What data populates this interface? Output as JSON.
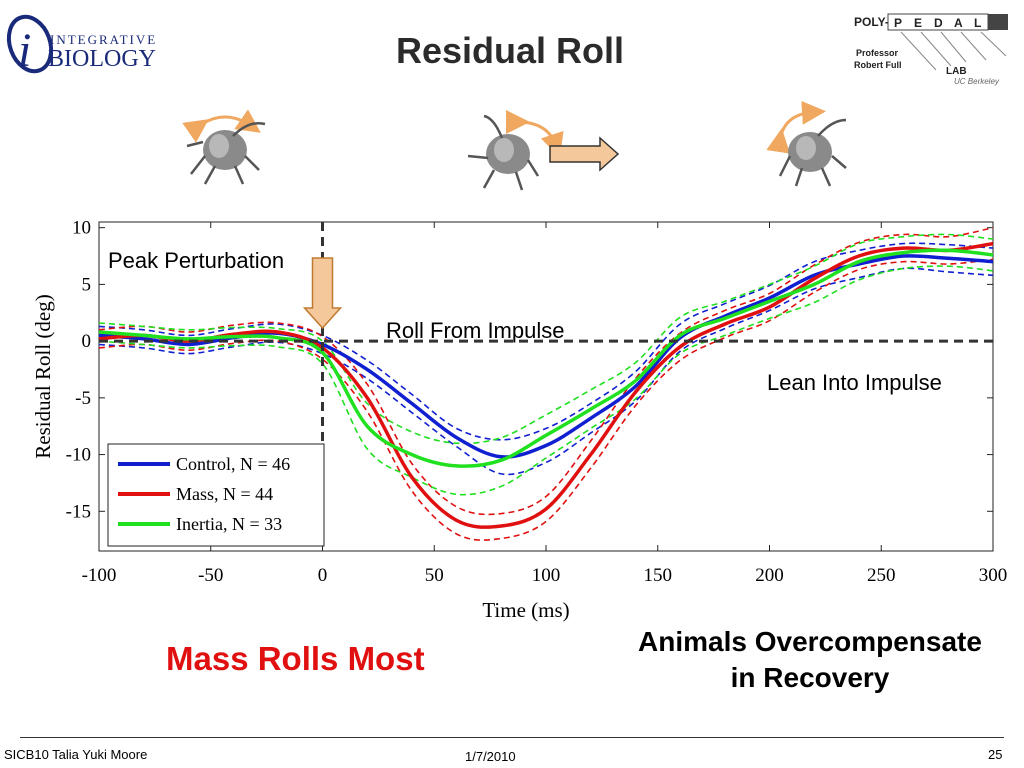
{
  "title": "Residual Roll",
  "logo_left": {
    "top": "INTEGRATIVE",
    "bottom": "BIOLOGY",
    "letter": "i"
  },
  "logo_right": {
    "poly": "POLY-",
    "letters": [
      "P",
      "E",
      "D",
      "A",
      "L"
    ],
    "professor": "Professor",
    "name": "Robert Full",
    "lab": "LAB",
    "affil": "UC Berkeley"
  },
  "annotations": {
    "peak": "Peak Perturbation",
    "roll_from": "Roll From Impulse",
    "lean_into": "Lean Into Impulse"
  },
  "captions": {
    "mass_rolls": "Mass Rolls Most",
    "overcomp_1": "Animals Overcompensate",
    "overcomp_2": "in Recovery"
  },
  "footer": {
    "left": "SICB10 Talia Yuki Moore",
    "date": "1/7/2010",
    "page": "25"
  },
  "colors": {
    "control": "#1020d0",
    "mass": "#e01010",
    "inertia": "#20e020",
    "arrow_fill": "#f4c89a",
    "arrow_stroke": "#c07a30"
  },
  "chart_data": {
    "type": "line",
    "title": "",
    "xlabel": "Time (ms)",
    "ylabel": "Residual Roll (deg)",
    "xlim": [
      -100,
      300
    ],
    "ylim": [
      -18.5,
      10.5
    ],
    "xticks": [
      -100,
      -50,
      0,
      50,
      100,
      150,
      200,
      250,
      300
    ],
    "yticks": [
      10,
      5,
      0,
      -5,
      -10,
      -15
    ],
    "grid": false,
    "legend_position": "bottom-left",
    "reference_lines": {
      "horizontal_y": 0,
      "vertical_x": 0,
      "style": "dashed"
    },
    "x": [
      -100,
      -80,
      -60,
      -40,
      -20,
      0,
      20,
      40,
      60,
      80,
      100,
      120,
      140,
      160,
      180,
      200,
      220,
      240,
      260,
      280,
      300
    ],
    "series": [
      {
        "name": "Control, N = 46",
        "key": "control",
        "values": [
          0.5,
          0.2,
          -0.3,
          0.3,
          0.7,
          -0.3,
          -2.5,
          -5.5,
          -8.5,
          -10.2,
          -9.2,
          -6.8,
          -4.0,
          0.3,
          2.2,
          3.8,
          5.8,
          6.8,
          7.5,
          7.3,
          7.0
        ],
        "upper": [
          1.3,
          1.0,
          0.5,
          1.1,
          1.5,
          0.5,
          -1.7,
          -4.7,
          -7.7,
          -8.7,
          -7.7,
          -5.5,
          -2.7,
          1.5,
          3.3,
          4.9,
          7.0,
          8.0,
          8.6,
          8.5,
          8.2
        ],
        "lower": [
          -0.3,
          -0.6,
          -1.1,
          -0.5,
          -0.1,
          -1.1,
          -3.3,
          -6.3,
          -9.3,
          -11.7,
          -10.7,
          -8.1,
          -5.3,
          -0.9,
          1.1,
          2.7,
          4.6,
          5.6,
          6.4,
          6.1,
          5.8
        ]
      },
      {
        "name": "Mass, N = 44",
        "key": "mass",
        "values": [
          0.2,
          0.5,
          0.0,
          0.6,
          0.8,
          -0.6,
          -5.0,
          -12.0,
          -15.8,
          -16.3,
          -14.8,
          -10.0,
          -4.5,
          -0.5,
          1.5,
          3.0,
          5.5,
          7.5,
          8.2,
          8.0,
          8.6
        ],
        "upper": [
          1.0,
          1.3,
          0.8,
          1.4,
          1.6,
          0.4,
          -3.8,
          -10.8,
          -14.6,
          -15.2,
          -13.7,
          -8.8,
          -3.3,
          0.7,
          2.7,
          4.2,
          6.7,
          8.7,
          9.4,
          9.2,
          10.0
        ],
        "lower": [
          -0.6,
          -0.3,
          -0.8,
          -0.2,
          0.0,
          -1.6,
          -6.2,
          -13.2,
          -17.0,
          -17.4,
          -15.9,
          -11.2,
          -5.7,
          -1.7,
          0.3,
          1.8,
          4.3,
          6.3,
          7.0,
          6.8,
          7.2
        ]
      },
      {
        "name": "Inertia, N = 33",
        "key": "inertia",
        "values": [
          0.8,
          0.5,
          0.2,
          0.4,
          0.3,
          -1.0,
          -7.5,
          -10.0,
          -11.0,
          -10.5,
          -8.3,
          -6.0,
          -3.5,
          0.5,
          2.0,
          3.5,
          5.0,
          7.0,
          7.8,
          8.0,
          7.6
        ],
        "upper": [
          1.6,
          1.3,
          1.0,
          1.2,
          1.1,
          0.0,
          -5.5,
          -8.0,
          -9.0,
          -8.5,
          -6.5,
          -4.3,
          -1.9,
          2.1,
          3.5,
          5.0,
          6.6,
          8.6,
          9.2,
          9.4,
          9.0
        ],
        "lower": [
          0.0,
          -0.3,
          -0.6,
          -0.4,
          -0.5,
          -2.0,
          -9.5,
          -12.0,
          -13.5,
          -12.8,
          -10.3,
          -7.7,
          -5.1,
          -1.1,
          0.5,
          2.0,
          3.4,
          5.4,
          6.4,
          6.6,
          6.2
        ]
      }
    ]
  }
}
